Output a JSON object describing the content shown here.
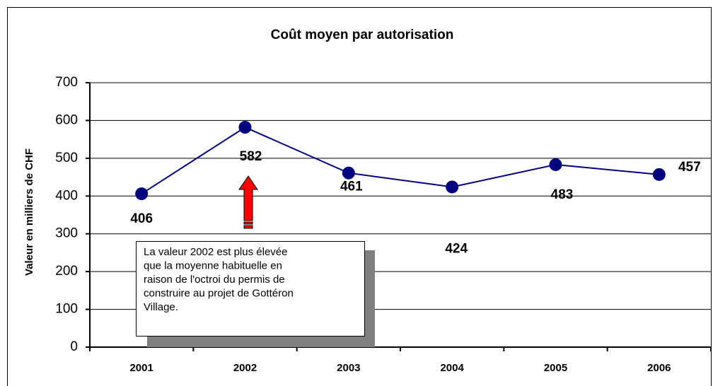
{
  "chart_data": {
    "type": "line",
    "title": "Coût moyen par autorisation",
    "y_label": "Valeur en milliers de CHF",
    "categories": [
      "2001",
      "2002",
      "2003",
      "2004",
      "2005",
      "2006"
    ],
    "series": [
      {
        "name": "Coût moyen",
        "color": "#000080",
        "values": [
          406,
          582,
          461,
          424,
          483,
          457
        ]
      }
    ],
    "ylim": [
      0,
      700
    ],
    "yticks": [
      0,
      100,
      200,
      300,
      400,
      500,
      600,
      700
    ],
    "grid": true,
    "annotation": [
      "La valeur  2002 est plus élevée",
      "que la moyenne habituelle en",
      "raison de l'octroi du permis de",
      "construire au projet de Gottéron",
      "Village."
    ]
  }
}
